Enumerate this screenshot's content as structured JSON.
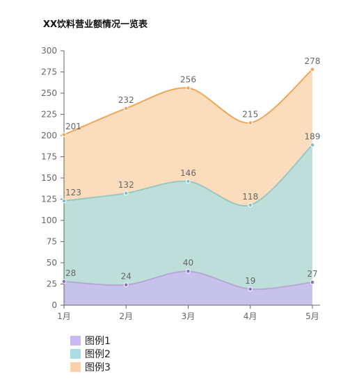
{
  "chart_data": {
    "type": "area",
    "title": "XX饮料营业额情况一览表",
    "categories": [
      "1月",
      "2月",
      "3月",
      "4月",
      "5月"
    ],
    "yticks": [
      "0",
      "25",
      "50",
      "75",
      "100",
      "125",
      "150",
      "175",
      "200",
      "225",
      "250",
      "275",
      "300"
    ],
    "ylim": [
      0,
      300
    ],
    "grid": false,
    "legend_position": "bottom-left",
    "series": [
      {
        "name": "图例1",
        "values": [
          28,
          24,
          40,
          19,
          27
        ],
        "labels": [
          "28",
          "24",
          "40",
          "19",
          "27"
        ],
        "fill": "#c9b8f2",
        "line": "#b6a8d4",
        "point": "#8a6fc7"
      },
      {
        "name": "图例2",
        "values": [
          123,
          132,
          146,
          118,
          189
        ],
        "labels": [
          "123",
          "132",
          "146",
          "118",
          "189"
        ],
        "fill": "#a9dde3",
        "line": "#9cc7bf",
        "point": "#7ec2c9"
      },
      {
        "name": "图例3",
        "values": [
          201,
          232,
          256,
          215,
          278
        ],
        "labels": [
          "201",
          "232",
          "256",
          "215",
          "278"
        ],
        "fill": "#f9d1a8",
        "line": "#f0a55a",
        "point": "#f0a55a"
      }
    ]
  }
}
